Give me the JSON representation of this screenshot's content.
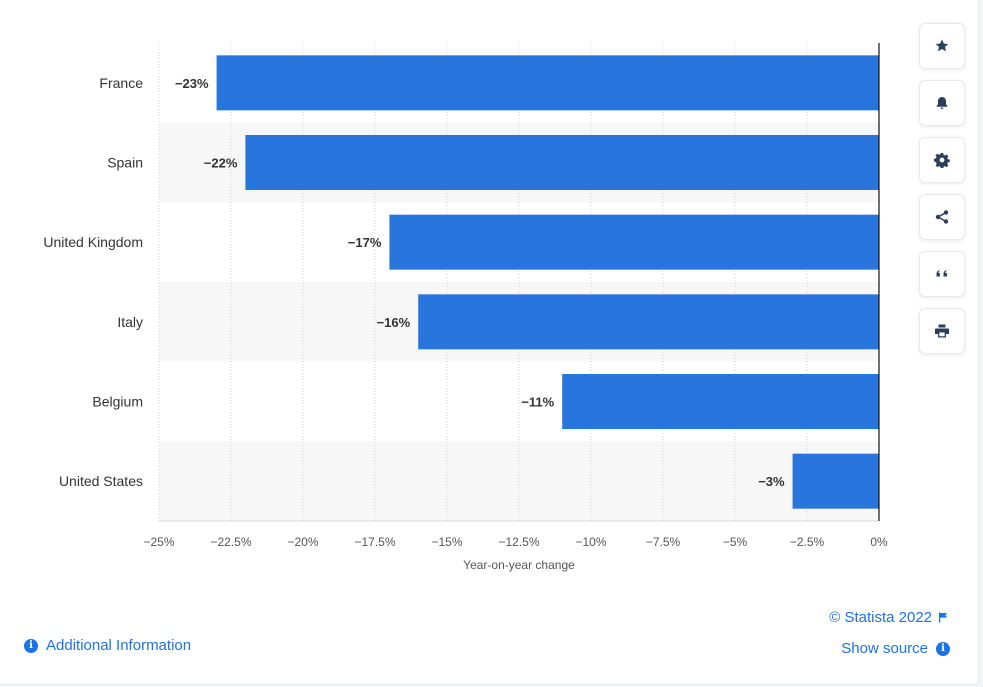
{
  "chart_data": {
    "type": "bar",
    "orientation": "horizontal",
    "categories": [
      "France",
      "Spain",
      "United Kingdom",
      "Italy",
      "Belgium",
      "United States"
    ],
    "values": [
      -23,
      -22,
      -17,
      -16,
      -11,
      -3
    ],
    "data_labels": [
      "−23%",
      "−22%",
      "−17%",
      "−16%",
      "−11%",
      "−3%"
    ],
    "xlabel": "Year-on-year change",
    "xlim": [
      -25,
      0
    ],
    "x_ticks": [
      -25,
      -22.5,
      -20,
      -17.5,
      -15,
      -12.5,
      -10,
      -7.5,
      -5,
      -2.5,
      0
    ],
    "x_tick_labels": [
      "−25%",
      "−22.5%",
      "−20%",
      "−17.5%",
      "−15%",
      "−12.5%",
      "−10%",
      "−7.5%",
      "−5%",
      "−2.5%",
      "0%"
    ],
    "grid": true,
    "bar_color": "#2876dd"
  },
  "toolbar": {
    "buttons": [
      {
        "name": "favorite-button",
        "icon": "star-icon"
      },
      {
        "name": "notification-button",
        "icon": "bell-icon"
      },
      {
        "name": "settings-button",
        "icon": "gear-icon"
      },
      {
        "name": "share-button",
        "icon": "share-icon"
      },
      {
        "name": "cite-button",
        "icon": "quote-icon"
      },
      {
        "name": "print-button",
        "icon": "printer-icon"
      }
    ]
  },
  "footer": {
    "additional_info_label": "Additional Information",
    "copyright": "© Statista 2022",
    "show_source_label": "Show source"
  },
  "colors": {
    "accent": "#1a73e8",
    "bar": "#2876dd",
    "band": "#f7f7f7",
    "icon": "#2b3f5c"
  }
}
